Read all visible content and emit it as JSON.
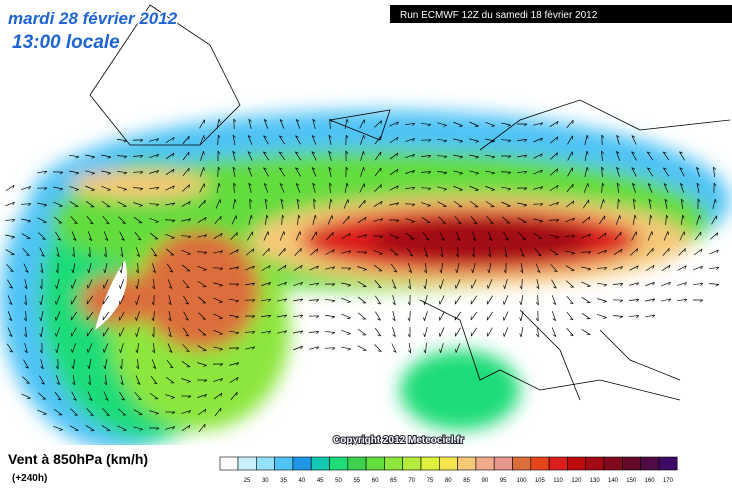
{
  "header": {
    "title": "mardi 28 février 2012",
    "time": "13:00 locale",
    "run": "Run ECMWF 12Z du samedi 18 février 2012"
  },
  "map": {
    "copyright": "Copyright 2012 Meteociel.fr"
  },
  "legend": {
    "title": "Vent à 850hPa (km/h)",
    "lead": "(+240h)",
    "scale": [
      {
        "label": "25",
        "color": "#c8f0fa"
      },
      {
        "label": "30",
        "color": "#96e1fa"
      },
      {
        "label": "35",
        "color": "#50c3f5"
      },
      {
        "label": "40",
        "color": "#1e96e6"
      },
      {
        "label": "45",
        "color": "#14c8b4"
      },
      {
        "label": "50",
        "color": "#1edc78"
      },
      {
        "label": "55",
        "color": "#3cd250"
      },
      {
        "label": "60",
        "color": "#64dc3c"
      },
      {
        "label": "65",
        "color": "#8ce63c"
      },
      {
        "label": "70",
        "color": "#b4eb3c"
      },
      {
        "label": "75",
        "color": "#dcf03c"
      },
      {
        "label": "80",
        "color": "#f5e650"
      },
      {
        "label": "85",
        "color": "#f5c878"
      },
      {
        "label": "90",
        "color": "#f0aa8c"
      },
      {
        "label": "95",
        "color": "#e6968c"
      },
      {
        "label": "100",
        "color": "#dc6e3c"
      },
      {
        "label": "105",
        "color": "#e6461e"
      },
      {
        "label": "110",
        "color": "#dc1e1e"
      },
      {
        "label": "120",
        "color": "#be0a0a"
      },
      {
        "label": "130",
        "color": "#a00a14"
      },
      {
        "label": "140",
        "color": "#820a1e"
      },
      {
        "label": "150",
        "color": "#640a28"
      },
      {
        "label": "160",
        "color": "#500a46"
      },
      {
        "label": "170",
        "color": "#3c0a64"
      }
    ]
  }
}
